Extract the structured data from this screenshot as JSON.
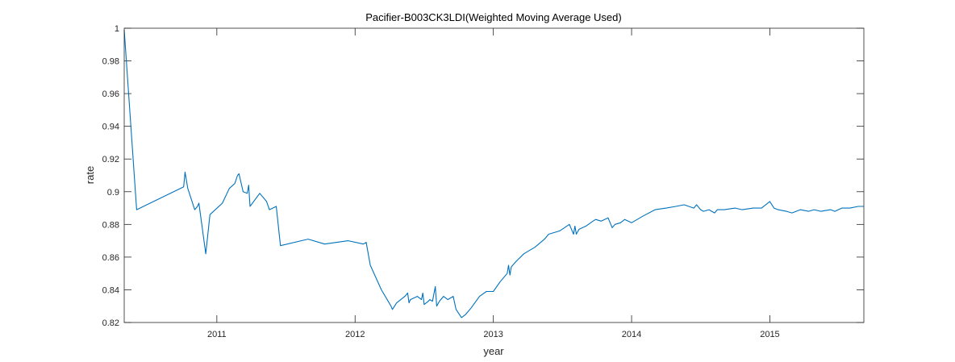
{
  "chart_data": {
    "type": "line",
    "title": "Pacifier-B003CK3LDI(Weighted Moving Average Used)",
    "xlabel": "year",
    "ylabel": "rate",
    "xlim": [
      2010.33,
      2015.68
    ],
    "ylim": [
      0.82,
      1.0
    ],
    "x_ticks": [
      2011,
      2012,
      2013,
      2014,
      2015
    ],
    "x_tick_labels": [
      "2011",
      "2012",
      "2013",
      "2014",
      "2015"
    ],
    "y_ticks": [
      0.82,
      0.84,
      0.86,
      0.88,
      0.9,
      0.92,
      0.94,
      0.96,
      0.98,
      1.0
    ],
    "y_tick_labels": [
      "0.82",
      "0.84",
      "0.86",
      "0.88",
      "0.9",
      "0.92",
      "0.94",
      "0.96",
      "0.98",
      "1"
    ],
    "grid": false,
    "line_color": "#0072BD",
    "series": [
      {
        "x": [
          2010.33,
          2010.42,
          2010.76,
          2010.77,
          2010.79,
          2010.84,
          2010.86,
          2010.87,
          2010.92,
          2010.95,
          2011.04,
          2011.09,
          2011.13,
          2011.15,
          2011.16,
          2011.19,
          2011.22,
          2011.23,
          2011.24,
          2011.31,
          2011.36,
          2011.38,
          2011.43,
          2011.46,
          2011.66,
          2011.78,
          2011.95,
          2012.06,
          2012.08,
          2012.11,
          2012.19,
          2012.26,
          2012.27,
          2012.3,
          2012.36,
          2012.38,
          2012.39,
          2012.4,
          2012.45,
          2012.48,
          2012.49,
          2012.5,
          2012.53,
          2012.54,
          2012.56,
          2012.58,
          2012.59,
          2012.61,
          2012.64,
          2012.67,
          2012.71,
          2012.73,
          2012.77,
          2012.8,
          2012.84,
          2012.9,
          2012.95,
          2013.0,
          2013.05,
          2013.1,
          2013.11,
          2013.12,
          2013.13,
          2013.16,
          2013.22,
          2013.3,
          2013.37,
          2013.4,
          2013.48,
          2013.55,
          2013.58,
          2013.59,
          2013.6,
          2013.62,
          2013.67,
          2013.72,
          2013.74,
          2013.78,
          2013.83,
          2013.86,
          2013.88,
          2013.92,
          2013.95,
          2014.0,
          2014.08,
          2014.17,
          2014.25,
          2014.32,
          2014.38,
          2014.45,
          2014.47,
          2014.5,
          2014.52,
          2014.56,
          2014.6,
          2014.62,
          2014.67,
          2014.75,
          2014.8,
          2014.88,
          2014.94,
          2015.0,
          2015.03,
          2015.06,
          2015.12,
          2015.16,
          2015.22,
          2015.28,
          2015.32,
          2015.37,
          2015.44,
          2015.47,
          2015.52,
          2015.58,
          2015.64,
          2015.68
        ],
        "y": [
          0.999,
          0.889,
          0.903,
          0.912,
          0.902,
          0.889,
          0.891,
          0.893,
          0.862,
          0.886,
          0.893,
          0.902,
          0.905,
          0.91,
          0.911,
          0.9,
          0.899,
          0.904,
          0.891,
          0.899,
          0.894,
          0.889,
          0.891,
          0.867,
          0.871,
          0.868,
          0.87,
          0.868,
          0.869,
          0.855,
          0.84,
          0.83,
          0.828,
          0.832,
          0.836,
          0.838,
          0.832,
          0.834,
          0.836,
          0.834,
          0.838,
          0.831,
          0.833,
          0.834,
          0.833,
          0.842,
          0.83,
          0.833,
          0.836,
          0.834,
          0.836,
          0.828,
          0.823,
          0.825,
          0.829,
          0.836,
          0.839,
          0.839,
          0.845,
          0.85,
          0.855,
          0.849,
          0.854,
          0.857,
          0.862,
          0.866,
          0.871,
          0.874,
          0.876,
          0.88,
          0.874,
          0.879,
          0.874,
          0.877,
          0.879,
          0.882,
          0.883,
          0.882,
          0.884,
          0.878,
          0.88,
          0.881,
          0.883,
          0.881,
          0.885,
          0.889,
          0.89,
          0.891,
          0.892,
          0.89,
          0.892,
          0.889,
          0.888,
          0.889,
          0.887,
          0.889,
          0.889,
          0.89,
          0.889,
          0.89,
          0.89,
          0.894,
          0.89,
          0.889,
          0.888,
          0.887,
          0.889,
          0.888,
          0.889,
          0.888,
          0.889,
          0.888,
          0.89,
          0.89,
          0.891,
          0.891
        ]
      }
    ]
  }
}
